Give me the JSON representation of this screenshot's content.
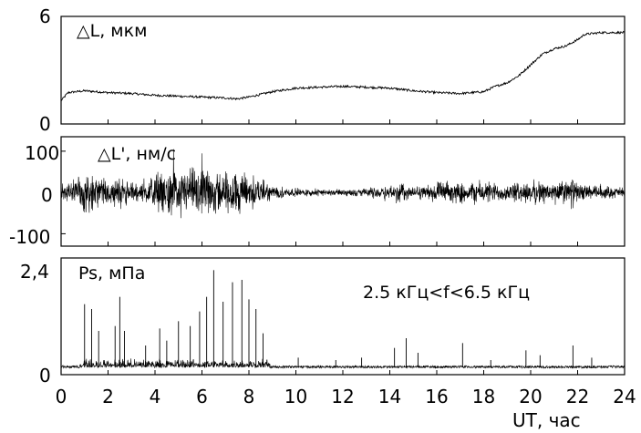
{
  "chart_data": [
    {
      "type": "line",
      "panel": "top",
      "label": "△L, мкм",
      "ylim": [
        0,
        6
      ],
      "yticks": [
        "0",
        "6"
      ],
      "xlim": [
        0,
        24
      ],
      "series": [
        {
          "x": [
            0,
            0.3,
            1,
            2,
            3,
            4,
            5,
            6,
            7,
            7.5,
            8,
            9,
            10,
            11,
            12,
            13,
            14,
            15,
            16,
            17,
            18,
            18.5,
            19,
            19.5,
            20,
            20.5,
            21,
            21.5,
            22,
            22.3,
            23,
            24
          ],
          "values": [
            1.3,
            1.75,
            1.85,
            1.75,
            1.7,
            1.6,
            1.55,
            1.5,
            1.45,
            1.4,
            1.5,
            1.8,
            2.0,
            2.05,
            2.1,
            2.05,
            2.0,
            1.85,
            1.75,
            1.7,
            1.8,
            2.1,
            2.3,
            2.7,
            3.3,
            3.9,
            4.2,
            4.35,
            4.7,
            5.0,
            5.1,
            5.1
          ],
          "noise": 0.12
        }
      ]
    },
    {
      "type": "line",
      "panel": "middle",
      "label": "△L', нм/с",
      "ylim": [
        -130,
        135
      ],
      "yticks": [
        "100",
        "0",
        "-100"
      ],
      "xlim": [
        0,
        24
      ],
      "series": [
        {
          "x": [
            0,
            0.5,
            1,
            1.5,
            2,
            2.5,
            3,
            3.5,
            4,
            5,
            6,
            7,
            8,
            8.5,
            9,
            10,
            11,
            12,
            13,
            14,
            14.5,
            15,
            16,
            17,
            18,
            19,
            20,
            21,
            21.8,
            22,
            23,
            24
          ],
          "values": [
            25,
            45,
            60,
            50,
            40,
            45,
            30,
            30,
            55,
            70,
            70,
            65,
            60,
            40,
            20,
            12,
            10,
            10,
            12,
            25,
            35,
            15,
            30,
            30,
            35,
            25,
            35,
            30,
            45,
            25,
            20,
            15
          ],
          "note": "symmetric noise envelope amplitude (нм/с)"
        }
      ]
    },
    {
      "type": "line",
      "panel": "bottom",
      "label": "Ps, мПа",
      "annotation": "2.5 кГц<f<6.5 кГц",
      "ylim": [
        0,
        2.4
      ],
      "yticks": [
        "2,4",
        "0"
      ],
      "xlim": [
        0,
        24
      ],
      "xticks": [
        "0",
        "2",
        "4",
        "6",
        "8",
        "10",
        "12",
        "14",
        "16",
        "18",
        "20",
        "22",
        "24"
      ],
      "xlabel": "UT, час",
      "baseline": 0.15,
      "series": [
        {
          "spikes": [
            {
              "x": 1.0,
              "values": 1.45
            },
            {
              "x": 1.3,
              "values": 1.35
            },
            {
              "x": 1.6,
              "values": 0.9
            },
            {
              "x": 2.3,
              "values": 1.0
            },
            {
              "x": 2.5,
              "values": 1.6
            },
            {
              "x": 2.7,
              "values": 0.9
            },
            {
              "x": 3.6,
              "values": 0.6
            },
            {
              "x": 4.2,
              "values": 0.95
            },
            {
              "x": 4.5,
              "values": 0.7
            },
            {
              "x": 5.0,
              "values": 1.1
            },
            {
              "x": 5.5,
              "values": 1.0
            },
            {
              "x": 5.9,
              "values": 1.3
            },
            {
              "x": 6.2,
              "values": 1.6
            },
            {
              "x": 6.5,
              "values": 2.15
            },
            {
              "x": 6.9,
              "values": 1.5
            },
            {
              "x": 7.3,
              "values": 1.9
            },
            {
              "x": 7.7,
              "values": 1.95
            },
            {
              "x": 8.0,
              "values": 1.55
            },
            {
              "x": 8.3,
              "values": 1.35
            },
            {
              "x": 8.6,
              "values": 0.85
            },
            {
              "x": 10.1,
              "values": 0.35
            },
            {
              "x": 11.7,
              "values": 0.3
            },
            {
              "x": 12.8,
              "values": 0.35
            },
            {
              "x": 14.2,
              "values": 0.55
            },
            {
              "x": 14.7,
              "values": 0.75
            },
            {
              "x": 15.2,
              "values": 0.45
            },
            {
              "x": 17.1,
              "values": 0.65
            },
            {
              "x": 18.3,
              "values": 0.3
            },
            {
              "x": 19.8,
              "values": 0.5
            },
            {
              "x": 20.4,
              "values": 0.4
            },
            {
              "x": 21.8,
              "values": 0.6
            },
            {
              "x": 22.6,
              "values": 0.35
            }
          ]
        }
      ]
    }
  ]
}
